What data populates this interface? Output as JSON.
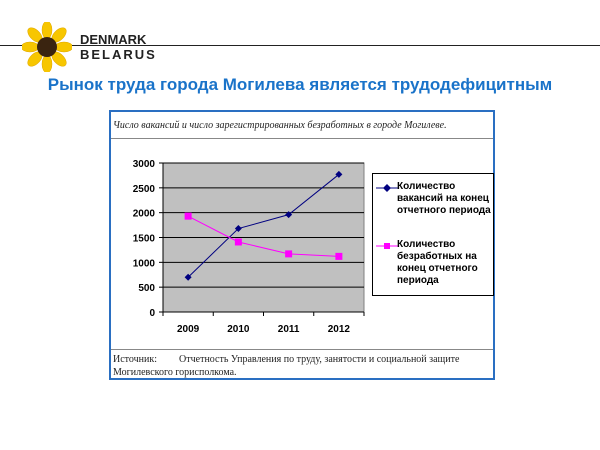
{
  "header": {
    "brand_line1": "DENMARK",
    "brand_line2": "BELARUS",
    "title": "Рынок труда города Могилева является трудодефицитным"
  },
  "colors": {
    "title": "#1a73c9",
    "vacancies": "#000080",
    "unemployed": "#ff00ff",
    "plot_bg": "#c0c0c0"
  },
  "chart_data": {
    "type": "line",
    "title": "Число вакансий и число зарегистрированных безработных в городе  Могилеве.",
    "categories": [
      "2009",
      "2010",
      "2011",
      "2012"
    ],
    "series": [
      {
        "name": "Количество вакансий на конец отчетного периода",
        "values": [
          700,
          1680,
          1960,
          2770
        ],
        "marker": "diamond"
      },
      {
        "name": "Количество безработных на конец отчетного периода",
        "values": [
          1930,
          1410,
          1170,
          1120
        ],
        "marker": "square"
      }
    ],
    "ylim": [
      0,
      3000
    ],
    "yticks": [
      "0",
      "500",
      "1000",
      "1500",
      "2000",
      "2500",
      "3000"
    ],
    "grid": true,
    "legend": "right",
    "source_label": "Источник:",
    "source_text": "Отчетность Управления по труду, занятости и социальной защите Могилевского горисполкома."
  }
}
